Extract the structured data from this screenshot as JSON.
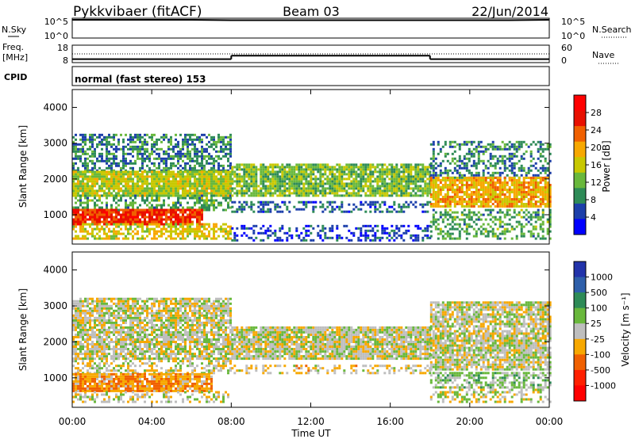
{
  "header": {
    "station": "Pykkvibaer (fitACF)",
    "beam": "Beam 03",
    "date": "22/Jun/2014"
  },
  "noise_panel": {
    "left_label": "N.Sky",
    "left_ticks": [
      "10^5",
      "10^0"
    ],
    "right_ticks": [
      "10^5",
      "10^0"
    ],
    "right_label": "N.Search"
  },
  "freq_panel": {
    "left_label_1": "Freq.",
    "left_label_2": "[MHz]",
    "left_ticks": [
      "18",
      "8"
    ],
    "right_ticks": [
      "60",
      "0"
    ],
    "right_label": "Nave"
  },
  "cpid_panel": {
    "label": "CPID",
    "text": "normal (fast stereo) 153"
  },
  "power_panel": {
    "ylabel": "Slant Range [km]",
    "colorbar_label": "Power [dB]",
    "colorbar_ticks": [
      "28",
      "24",
      "20",
      "16",
      "12",
      "8",
      "4"
    ],
    "colors": [
      "#0000ff",
      "#1c3faa",
      "#2e8b57",
      "#69b83c",
      "#c8c800",
      "#f7a800",
      "#f06000",
      "#e81000",
      "#ff0000"
    ]
  },
  "velocity_panel": {
    "ylabel": "Slant Range [km]",
    "colorbar_label": "Velocity [m s⁻¹]",
    "colorbar_ticks": [
      "1000",
      "500",
      "100",
      "25",
      "-25",
      "-100",
      "-500",
      "-1000"
    ],
    "colors": [
      "#2233aa",
      "#2e5faa",
      "#2e8b57",
      "#69b83c",
      "#bebebe",
      "#f7a800",
      "#f06000",
      "#ff2000",
      "#ff0000"
    ]
  },
  "xaxis": {
    "label": "Time UT",
    "ticks": [
      "00:00",
      "04:00",
      "08:00",
      "12:00",
      "16:00",
      "20:00",
      "00:00"
    ]
  },
  "chart_data": [
    {
      "type": "line",
      "title": "N.Sky / N.Search",
      "x": [
        0,
        1,
        2,
        4,
        6,
        8,
        10,
        12,
        14,
        16,
        18,
        20,
        22,
        24
      ],
      "ylim_log10": [
        0,
        5
      ],
      "series": [
        {
          "name": "N.Sky",
          "values_log10": [
            4.6,
            4.6,
            4.6,
            4.6,
            4.6,
            4.5,
            4.5,
            4.5,
            4.5,
            4.5,
            4.5,
            4.5,
            4.5,
            4.6
          ]
        }
      ]
    },
    {
      "type": "line",
      "title": "Freq. [MHz]",
      "ylim": [
        8,
        18
      ],
      "segments": [
        {
          "x0": 0,
          "x1": 8,
          "value": 10
        },
        {
          "x0": 8,
          "x1": 18,
          "value": 12
        },
        {
          "x0": 18,
          "x1": 24,
          "value": 10
        }
      ],
      "nave_dotted_value": 13
    },
    {
      "type": "heatmap",
      "title": "Power [dB]",
      "xlim": [
        0,
        24
      ],
      "ylim": [
        180,
        4500
      ],
      "scale": [
        0,
        30
      ],
      "regions": [
        {
          "x": [
            0.0,
            8.0
          ],
          "y": [
            2200,
            3200
          ],
          "value": 8,
          "density": 0.55
        },
        {
          "x": [
            0.0,
            8.0
          ],
          "y": [
            1500,
            2200
          ],
          "value": 14,
          "density": 0.9
        },
        {
          "x": [
            0.0,
            8.0
          ],
          "y": [
            1100,
            1500
          ],
          "value": 10,
          "density": 0.5
        },
        {
          "x": [
            0.0,
            6.5
          ],
          "y": [
            700,
            1100
          ],
          "value": 24,
          "density": 0.9
        },
        {
          "x": [
            0.0,
            8.0
          ],
          "y": [
            300,
            700
          ],
          "value": 16,
          "density": 0.6
        },
        {
          "x": [
            8.0,
            18.0
          ],
          "y": [
            1500,
            2400
          ],
          "value": 12,
          "density": 0.85
        },
        {
          "x": [
            8.0,
            18.0
          ],
          "y": [
            1050,
            1350
          ],
          "value": 6,
          "density": 0.45
        },
        {
          "x": [
            8.0,
            18.0
          ],
          "y": [
            250,
            700
          ],
          "value": 4,
          "density": 0.35
        },
        {
          "x": [
            18.0,
            24.0
          ],
          "y": [
            2000,
            3000
          ],
          "value": 8,
          "density": 0.45
        },
        {
          "x": [
            18.0,
            24.0
          ],
          "y": [
            1200,
            2000
          ],
          "value": 18,
          "density": 0.85
        },
        {
          "x": [
            18.0,
            24.0
          ],
          "y": [
            300,
            1100
          ],
          "value": 10,
          "density": 0.45
        }
      ]
    },
    {
      "type": "heatmap",
      "title": "Velocity [m s⁻¹]",
      "xlim": [
        0,
        24
      ],
      "ylim": [
        180,
        4500
      ],
      "scale": [
        -1000,
        1000
      ],
      "regions": [
        {
          "x": [
            0.0,
            8.0
          ],
          "y": [
            1500,
            3200
          ],
          "value": 0,
          "density": 0.8
        },
        {
          "x": [
            0.0,
            8.0
          ],
          "y": [
            1100,
            1500
          ],
          "value": 0,
          "density": 0.5
        },
        {
          "x": [
            0.0,
            7.0
          ],
          "y": [
            600,
            1100
          ],
          "value": -300,
          "density": 0.9
        },
        {
          "x": [
            0.0,
            8.0
          ],
          "y": [
            300,
            600
          ],
          "value": 0,
          "density": 0.4
        },
        {
          "x": [
            8.0,
            18.0
          ],
          "y": [
            1500,
            2400
          ],
          "value": 0,
          "density": 0.9
        },
        {
          "x": [
            8.0,
            18.0
          ],
          "y": [
            1100,
            1350
          ],
          "value": -100,
          "density": 0.4
        },
        {
          "x": [
            18.0,
            24.0
          ],
          "y": [
            1200,
            3100
          ],
          "value": 0,
          "density": 0.8
        },
        {
          "x": [
            18.0,
            24.0
          ],
          "y": [
            700,
            1100
          ],
          "value": 150,
          "density": 0.6
        },
        {
          "x": [
            18.0,
            24.0
          ],
          "y": [
            300,
            700
          ],
          "value": 0,
          "density": 0.4
        }
      ]
    }
  ]
}
